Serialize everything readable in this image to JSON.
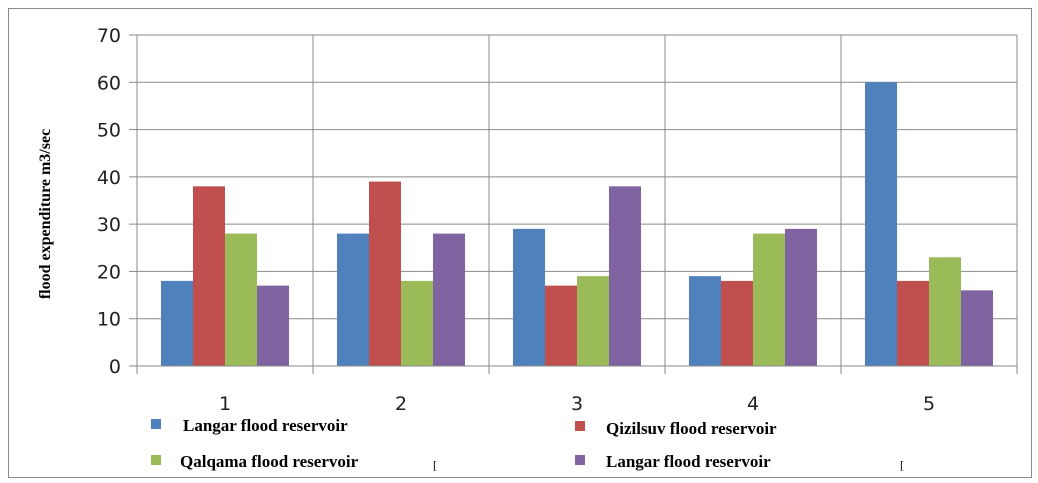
{
  "chart_data": {
    "type": "bar",
    "title": "",
    "xlabel": "",
    "ylabel": "flood expenditure m3/sec",
    "categories": [
      "1",
      "2",
      "3",
      "4",
      "5"
    ],
    "ylim": [
      0,
      70
    ],
    "yticks": [
      0,
      10,
      20,
      30,
      40,
      50,
      60,
      70
    ],
    "grid": true,
    "legend_position": "bottom",
    "series": [
      {
        "name": "Langar flood reservoir",
        "color": "#4F81BD",
        "values": [
          18,
          28,
          29,
          19,
          60
        ]
      },
      {
        "name": "Qizilsuv flood reservoir",
        "color": "#C0504D",
        "values": [
          38,
          39,
          17,
          18,
          18
        ]
      },
      {
        "name": "Qalqama flood reservoir",
        "color": "#9BBB59",
        "values": [
          28,
          18,
          19,
          28,
          23
        ]
      },
      {
        "name": "Langar flood reservoir",
        "color": "#8064A2",
        "values": [
          17,
          28,
          38,
          29,
          16
        ]
      }
    ],
    "stray_marks": [
      "[",
      "["
    ]
  }
}
